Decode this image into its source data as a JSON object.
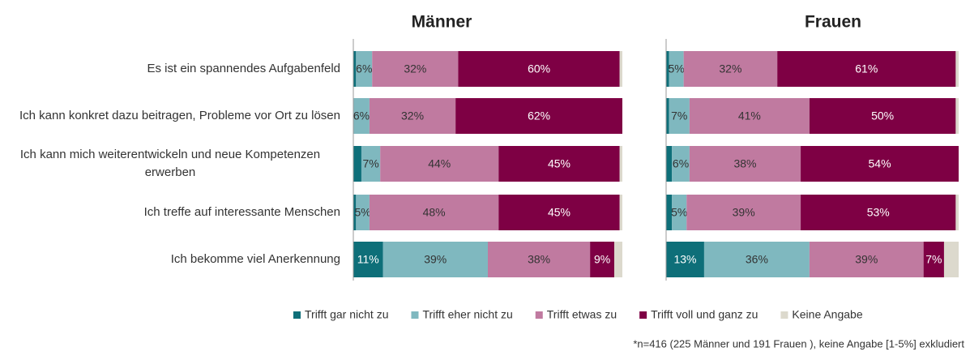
{
  "chart_data": {
    "type": "bar",
    "orientation": "horizontal",
    "stacked": true,
    "xlim": [
      0,
      100
    ],
    "categories": [
      "Es ist ein spannendes Aufgabenfeld",
      "Ich kann konkret dazu beitragen, Probleme vor Ort zu lösen",
      "Ich kann mich weiterentwickeln und neue Kompetenzen erwerben",
      "Ich treffe auf interessante Menschen",
      "Ich bekomme viel Anerkennung"
    ],
    "series": [
      {
        "name": "Trifft gar nicht zu",
        "color": "#0e6f79"
      },
      {
        "name": "Trifft eher nicht zu",
        "color": "#7fb8bf"
      },
      {
        "name": "Trifft etwas zu",
        "color": "#c07aa0"
      },
      {
        "name": "Trifft voll und ganz zu",
        "color": "#7e0044"
      },
      {
        "name": "Keine Angabe",
        "color": "#dcd9cd"
      }
    ],
    "panels": [
      {
        "title": "Männer",
        "values": [
          [
            1,
            0,
            3,
            1,
            11
          ],
          [
            6,
            6,
            7,
            5,
            39
          ],
          [
            32,
            32,
            44,
            48,
            38
          ],
          [
            60,
            62,
            45,
            45,
            9
          ],
          [
            1,
            0,
            1,
            1,
            3
          ]
        ],
        "value_labels": [
          [
            null,
            null,
            null,
            null,
            "11%"
          ],
          [
            "6%",
            "6%",
            "7%",
            "5%",
            "39%"
          ],
          [
            "32%",
            "32%",
            "44%",
            "48%",
            "38%"
          ],
          [
            "60%",
            "62%",
            "45%",
            "45%",
            "9%"
          ],
          [
            null,
            null,
            null,
            null,
            null
          ]
        ]
      },
      {
        "title": "Frauen",
        "values": [
          [
            1,
            1,
            2,
            2,
            13
          ],
          [
            5,
            7,
            6,
            5,
            36
          ],
          [
            32,
            41,
            38,
            39,
            39
          ],
          [
            61,
            50,
            54,
            53,
            7
          ],
          [
            1,
            1,
            0,
            1,
            5
          ]
        ],
        "value_labels": [
          [
            null,
            null,
            null,
            null,
            "13%"
          ],
          [
            "5%",
            "7%",
            "6%",
            "5%",
            "36%"
          ],
          [
            "32%",
            "41%",
            "38%",
            "39%",
            "39%"
          ],
          [
            "61%",
            "50%",
            "54%",
            "53%",
            "7%"
          ],
          [
            null,
            null,
            null,
            null,
            null
          ]
        ]
      }
    ],
    "footnote": "*n=416 (225 Männer und 191 Frauen ), keine Angabe [1-5%] exkludiert"
  }
}
